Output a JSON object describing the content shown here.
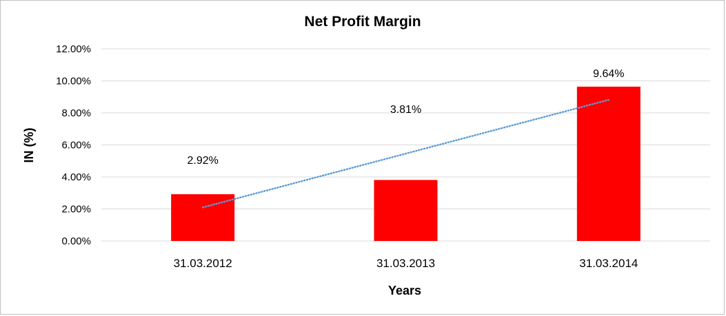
{
  "chart_data": {
    "type": "bar",
    "title": "Net Profit Margin",
    "xlabel": "Years",
    "ylabel": "IN (%)",
    "categories": [
      "31.03.2012",
      "31.03.2013",
      "31.03.2014"
    ],
    "values": [
      2.92,
      3.81,
      9.64
    ],
    "data_labels": [
      "2.92%",
      "3.81%",
      "9.64%"
    ],
    "ylim": [
      0,
      12
    ],
    "yticks": [
      0,
      2,
      4,
      6,
      8,
      10,
      12
    ],
    "ytick_labels": [
      "0.00%",
      "2.00%",
      "4.00%",
      "6.00%",
      "8.00%",
      "10.00%",
      "12.00%"
    ],
    "grid": true,
    "legend": "none",
    "trendline": {
      "type": "linear",
      "style": "dotted"
    },
    "colors": {
      "bar": "#ff0000",
      "trendline": "#5b9bd5",
      "grid": "#d9d9d9",
      "border": "#bfbfbf"
    }
  }
}
